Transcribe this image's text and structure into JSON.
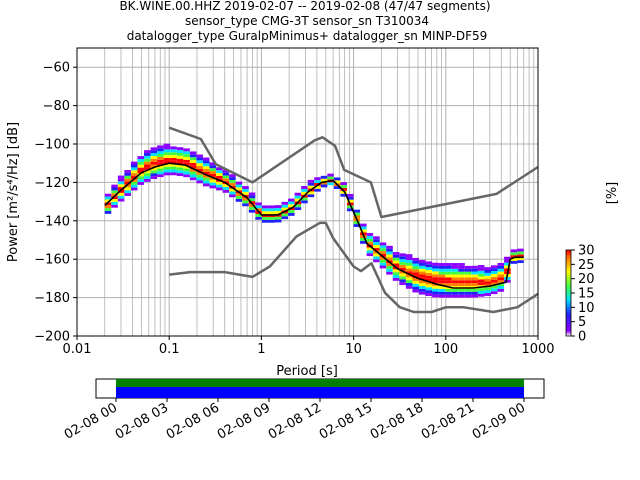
{
  "chart_data": [
    {
      "type": "heatmap",
      "title_lines": [
        "BK.WINE.00.HHZ   2019-02-07 -- 2019-02-08  (47/47 segments)",
        "sensor_type CMG-3T sensor_sn T310034",
        "datalogger_type GuralpMinimus+ datalogger_sn MINP-DF59"
      ],
      "xlabel": "Period [s]",
      "ylabel": "Power [m²/s⁴/Hz] [dB]",
      "xscale": "log",
      "xlim": [
        0.01,
        1000
      ],
      "ylim": [
        -200,
        -50
      ],
      "xtick_labels": [
        "0.01",
        "0.1",
        "1",
        "10",
        "100",
        "1000"
      ],
      "ytick_values": [
        -200,
        -180,
        -160,
        -140,
        -120,
        -100,
        -80,
        -60
      ],
      "ytick_labels": [
        "−200",
        "−180",
        "−160",
        "−140",
        "−120",
        "−100",
        "−80",
        "−60"
      ],
      "grid": true,
      "colorbar": {
        "label": "[%]",
        "range": [
          0,
          30
        ],
        "tick_labels": [
          "0",
          "5",
          "10",
          "15",
          "20",
          "25",
          "30"
        ]
      },
      "series": [
        {
          "name": "",
          "role": "noise model high",
          "color": "#666666",
          "x": [
            0.1,
            0.22,
            0.32,
            0.8,
            3.8,
            4.6,
            6.3,
            7.9,
            15.4,
            20,
            354.8,
            1000
          ],
          "y": [
            -91.5,
            -97.4,
            -110.5,
            -120,
            -98,
            -96.5,
            -101,
            -113.5,
            -120,
            -138,
            -126,
            -112
          ]
        },
        {
          "name": "",
          "role": "noise model low",
          "color": "#666666",
          "x": [
            0.1,
            0.17,
            0.4,
            0.8,
            1.24,
            2.4,
            4.3,
            5,
            6,
            10,
            12,
            15.6,
            21.9,
            31.6,
            45,
            70,
            101,
            154,
            328,
            600,
            1000
          ],
          "y": [
            -168,
            -166.7,
            -166.7,
            -169.2,
            -163.7,
            -148.1,
            -141.1,
            -141.1,
            -149,
            -163.8,
            -166.2,
            -162.1,
            -177.5,
            -185,
            -187.5,
            -187.5,
            -185,
            -185,
            -187.5,
            -185,
            -178
          ]
        },
        {
          "name": "",
          "role": "median",
          "color": "#000000",
          "x": [
            0.02,
            0.03,
            0.05,
            0.07,
            0.1,
            0.15,
            0.25,
            0.4,
            0.7,
            1.0,
            1.5,
            2.2,
            3.2,
            4.5,
            6,
            8,
            11,
            14,
            20,
            30,
            50,
            80,
            120,
            200,
            300,
            450,
            500,
            560,
            700
          ],
          "y": [
            -132,
            -124,
            -115,
            -112,
            -110,
            -111,
            -116,
            -120,
            -128,
            -137,
            -137,
            -133,
            -125,
            -120,
            -119,
            -125,
            -140,
            -152,
            -158,
            -165,
            -170,
            -173,
            -175,
            -175,
            -174,
            -172,
            -160,
            -159,
            -159
          ]
        },
        {
          "name": "",
          "role": "density band",
          "colormap": [
            "#8c00ff",
            "#2020ff",
            "#00e0ff",
            "#40ff40",
            "#ffff00",
            "#ff8000",
            "#ff0000"
          ],
          "x": [
            0.02,
            0.03,
            0.05,
            0.07,
            0.1,
            0.15,
            0.25,
            0.4,
            0.7,
            1.0,
            1.5,
            2.2,
            3.2,
            4.5,
            6,
            8,
            11,
            14,
            20,
            30,
            50,
            80,
            120,
            200,
            300,
            450,
            500,
            560,
            700
          ],
          "y_low": [
            -138,
            -130,
            -121,
            -118,
            -116,
            -117,
            -122,
            -125,
            -133,
            -141,
            -141,
            -137,
            -129,
            -123,
            -121,
            -128,
            -144,
            -157,
            -164,
            -172,
            -178,
            -180,
            -180,
            -180,
            -179,
            -176,
            -164,
            -162,
            -162
          ],
          "y_high": [
            -128,
            -118,
            -106,
            -102,
            -101,
            -102,
            -108,
            -114,
            -123,
            -133,
            -133,
            -129,
            -121,
            -117,
            -116,
            -121,
            -135,
            -146,
            -151,
            -157,
            -160,
            -162,
            -163,
            -164,
            -165,
            -162,
            -156,
            -155,
            -155
          ]
        }
      ]
    },
    {
      "type": "timeline",
      "tick_labels": [
        "02-08 00",
        "02-08 03",
        "02-08 06",
        "02-08 09",
        "02-08 12",
        "02-08 15",
        "02-08 18",
        "02-08 21",
        "02-09 00"
      ],
      "rows": [
        {
          "name": "",
          "color": "#008000",
          "coverage": [
            0,
            1
          ]
        },
        {
          "name": "",
          "color": "#0000ff",
          "coverage": [
            0,
            1
          ]
        }
      ]
    }
  ]
}
